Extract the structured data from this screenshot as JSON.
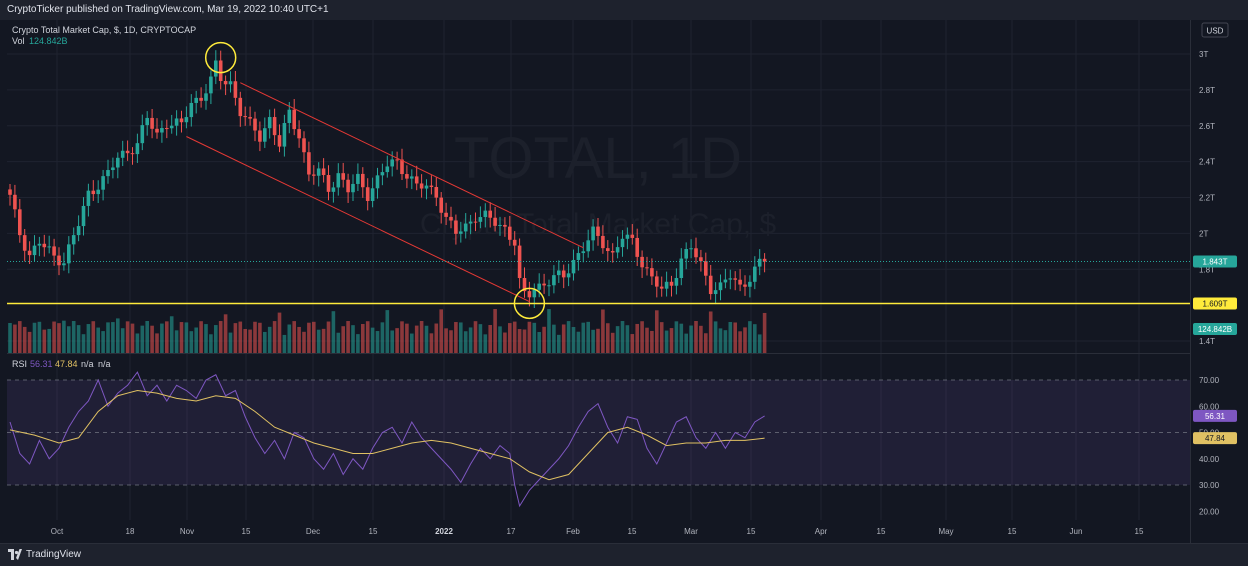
{
  "header": {
    "publish_line": "CryptoTicker published on TradingView.com, Mar 19, 2022 10:40 UTC+1",
    "symbol_line": "Crypto Total Market Cap, $, 1D, CRYPTOCAP",
    "vol_label": "Vol",
    "vol_value": "124.842B",
    "currency": "USD"
  },
  "watermark": {
    "symbol": "TOTAL, 1D",
    "description": "Crypto Total Market Cap, $"
  },
  "footer": {
    "brand": "TradingView"
  },
  "colors": {
    "background": "#131722",
    "up": "#26a69a",
    "down": "#ef5350",
    "channel": "#e53935",
    "support": "#ffeb3b",
    "rsi": "#7e57c2",
    "rsi_ma": "#e0c163"
  },
  "chart_data": [
    {
      "type": "candlestick",
      "title": "Crypto Total Market Cap, $, 1D, CRYPTOCAP",
      "x_ticks": [
        "Oct",
        "18",
        "Nov",
        "15",
        "Dec",
        "15",
        "2022",
        "17",
        "Feb",
        "15",
        "Mar",
        "15",
        "Apr",
        "15",
        "May",
        "15",
        "Jun",
        "15"
      ],
      "y_ticks": [
        "3T",
        "2.8T",
        "2.6T",
        "2.4T",
        "2.2T",
        "2T",
        "1.8T",
        "1.4T"
      ],
      "ylim": [
        1.36,
        3.06
      ],
      "last_price": "1.843T",
      "support_level": {
        "value": 1.609,
        "label": "1.609T"
      },
      "volume_label": "124.842B",
      "close_path": [
        [
          0,
          2.2
        ],
        [
          2,
          2.0
        ],
        [
          4,
          1.88
        ],
        [
          6,
          1.95
        ],
        [
          9,
          1.87
        ],
        [
          11,
          1.85
        ],
        [
          14,
          2.05
        ],
        [
          16,
          2.22
        ],
        [
          20,
          2.33
        ],
        [
          22,
          2.42
        ],
        [
          26,
          2.5
        ],
        [
          28,
          2.64
        ],
        [
          30,
          2.55
        ],
        [
          32,
          2.62
        ],
        [
          35,
          2.6
        ],
        [
          37,
          2.73
        ],
        [
          39,
          2.76
        ],
        [
          41,
          2.85
        ],
        [
          42,
          2.93
        ],
        [
          43,
          2.86
        ],
        [
          45,
          2.84
        ],
        [
          47,
          2.68
        ],
        [
          49,
          2.6
        ],
        [
          51,
          2.54
        ],
        [
          53,
          2.64
        ],
        [
          55,
          2.49
        ],
        [
          57,
          2.67
        ],
        [
          59,
          2.55
        ],
        [
          61,
          2.33
        ],
        [
          63,
          2.34
        ],
        [
          65,
          2.25
        ],
        [
          67,
          2.33
        ],
        [
          69,
          2.24
        ],
        [
          71,
          2.3
        ],
        [
          73,
          2.22
        ],
        [
          75,
          2.3
        ],
        [
          77,
          2.38
        ],
        [
          79,
          2.4
        ],
        [
          81,
          2.33
        ],
        [
          83,
          2.26
        ],
        [
          85,
          2.26
        ],
        [
          87,
          2.22
        ],
        [
          89,
          2.08
        ],
        [
          91,
          2.0
        ],
        [
          93,
          2.04
        ],
        [
          95,
          2.1
        ],
        [
          97,
          2.09
        ],
        [
          99,
          2.06
        ],
        [
          101,
          2.03
        ],
        [
          103,
          1.95
        ],
        [
          104,
          1.72
        ],
        [
          105,
          1.65
        ],
        [
          106,
          1.66
        ],
        [
          107,
          1.7
        ],
        [
          109,
          1.72
        ],
        [
          111,
          1.75
        ],
        [
          113,
          1.76
        ],
        [
          115,
          1.85
        ],
        [
          117,
          1.92
        ],
        [
          119,
          2.0
        ],
        [
          121,
          1.95
        ],
        [
          123,
          1.88
        ],
        [
          125,
          1.98
        ],
        [
          127,
          1.95
        ],
        [
          129,
          1.84
        ],
        [
          131,
          1.75
        ],
        [
          133,
          1.68
        ],
        [
          135,
          1.72
        ],
        [
          137,
          1.86
        ],
        [
          139,
          1.92
        ],
        [
          141,
          1.82
        ],
        [
          143,
          1.7
        ],
        [
          145,
          1.7
        ],
        [
          147,
          1.76
        ],
        [
          149,
          1.7
        ],
        [
          151,
          1.76
        ],
        [
          153,
          1.83
        ],
        [
          154,
          1.843
        ]
      ],
      "markers": [
        {
          "label": "top",
          "time_index": 43,
          "value": 2.98
        },
        {
          "label": "bottom",
          "time_index": 106,
          "value": 1.61
        }
      ],
      "channel": {
        "upper": [
          [
            47,
            2.84
          ],
          [
            117,
            1.92
          ]
        ],
        "lower": [
          [
            36,
            2.54
          ],
          [
            106,
            1.62
          ]
        ]
      }
    },
    {
      "type": "line",
      "title": "RSI",
      "legend": [
        "RSI",
        "56.31",
        "47.84",
        "n/a",
        "n/a"
      ],
      "y_ticks": [
        "70.00",
        "60.00",
        "50.00",
        "40.00",
        "30.00",
        "20.00"
      ],
      "ylim": [
        17,
        77
      ],
      "band": [
        30,
        70
      ],
      "series": [
        {
          "name": "RSI",
          "value": "56.31",
          "points": [
            [
              0,
              54
            ],
            [
              2,
              42
            ],
            [
              4,
              38
            ],
            [
              6,
              47
            ],
            [
              8,
              40
            ],
            [
              10,
              44
            ],
            [
              12,
              52
            ],
            [
              14,
              58
            ],
            [
              16,
              62
            ],
            [
              18,
              70
            ],
            [
              20,
              60
            ],
            [
              22,
              65
            ],
            [
              24,
              68
            ],
            [
              26,
              73
            ],
            [
              28,
              64
            ],
            [
              30,
              68
            ],
            [
              32,
              62
            ],
            [
              34,
              68
            ],
            [
              36,
              66
            ],
            [
              38,
              63
            ],
            [
              40,
              70
            ],
            [
              42,
              72
            ],
            [
              44,
              64
            ],
            [
              46,
              66
            ],
            [
              48,
              56
            ],
            [
              50,
              48
            ],
            [
              52,
              42
            ],
            [
              54,
              47
            ],
            [
              56,
              40
            ],
            [
              58,
              50
            ],
            [
              60,
              48
            ],
            [
              62,
              40
            ],
            [
              64,
              36
            ],
            [
              66,
              42
            ],
            [
              68,
              34
            ],
            [
              70,
              40
            ],
            [
              72,
              36
            ],
            [
              74,
              44
            ],
            [
              76,
              50
            ],
            [
              78,
              52
            ],
            [
              80,
              46
            ],
            [
              82,
              54
            ],
            [
              84,
              48
            ],
            [
              86,
              44
            ],
            [
              88,
              40
            ],
            [
              90,
              36
            ],
            [
              92,
              31
            ],
            [
              94,
              38
            ],
            [
              96,
              44
            ],
            [
              98,
              40
            ],
            [
              100,
              45
            ],
            [
              102,
              42
            ],
            [
              103,
              30
            ],
            [
              104,
              22
            ],
            [
              106,
              28
            ],
            [
              108,
              32
            ],
            [
              110,
              36
            ],
            [
              112,
              40
            ],
            [
              114,
              45
            ],
            [
              116,
              52
            ],
            [
              118,
              58
            ],
            [
              120,
              61
            ],
            [
              122,
              52
            ],
            [
              124,
              46
            ],
            [
              126,
              56
            ],
            [
              128,
              55
            ],
            [
              130,
              44
            ],
            [
              132,
              38
            ],
            [
              134,
              46
            ],
            [
              136,
              54
            ],
            [
              138,
              56
            ],
            [
              140,
              48
            ],
            [
              142,
              44
            ],
            [
              144,
              50
            ],
            [
              146,
              44
            ],
            [
              148,
              50
            ],
            [
              150,
              48
            ],
            [
              152,
              54
            ],
            [
              154,
              56.31
            ]
          ]
        },
        {
          "name": "RSI-based MA",
          "value": "47.84",
          "points": [
            [
              0,
              51
            ],
            [
              5,
              49
            ],
            [
              10,
              46
            ],
            [
              14,
              48
            ],
            [
              18,
              58
            ],
            [
              22,
              64
            ],
            [
              26,
              66
            ],
            [
              30,
              65
            ],
            [
              34,
              63
            ],
            [
              38,
              62
            ],
            [
              42,
              64
            ],
            [
              46,
              63
            ],
            [
              50,
              58
            ],
            [
              54,
              52
            ],
            [
              58,
              49
            ],
            [
              62,
              46
            ],
            [
              66,
              44
            ],
            [
              70,
              42
            ],
            [
              74,
              42
            ],
            [
              78,
              44
            ],
            [
              82,
              46
            ],
            [
              86,
              47
            ],
            [
              90,
              46
            ],
            [
              94,
              44
            ],
            [
              98,
              42
            ],
            [
              102,
              40
            ],
            [
              106,
              35
            ],
            [
              110,
              32
            ],
            [
              114,
              34
            ],
            [
              118,
              42
            ],
            [
              122,
              50
            ],
            [
              126,
              52
            ],
            [
              130,
              49
            ],
            [
              134,
              45
            ],
            [
              138,
              46
            ],
            [
              142,
              46
            ],
            [
              146,
              47
            ],
            [
              150,
              47
            ],
            [
              154,
              47.84
            ]
          ]
        }
      ]
    }
  ]
}
